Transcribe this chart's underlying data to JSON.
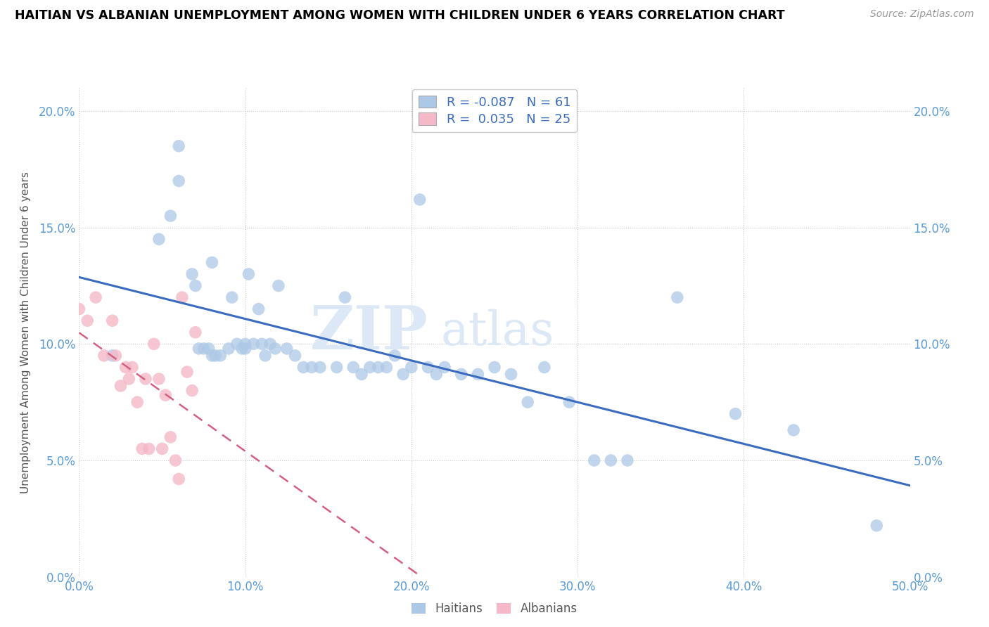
{
  "title": "HAITIAN VS ALBANIAN UNEMPLOYMENT AMONG WOMEN WITH CHILDREN UNDER 6 YEARS CORRELATION CHART",
  "source": "Source: ZipAtlas.com",
  "ylabel": "Unemployment Among Women with Children Under 6 years",
  "xlim": [
    0.0,
    0.5
  ],
  "ylim": [
    0.0,
    0.21
  ],
  "xticks": [
    0.0,
    0.1,
    0.2,
    0.3,
    0.4,
    0.5
  ],
  "yticks": [
    0.0,
    0.05,
    0.1,
    0.15,
    0.2
  ],
  "haitian_R": -0.087,
  "haitian_N": 61,
  "albanian_R": 0.035,
  "albanian_N": 25,
  "haitian_color": "#adc8e6",
  "albanian_color": "#f5b8c8",
  "haitian_line_color": "#3a6bbf",
  "albanian_line_color": "#d46080",
  "watermark_zip": "ZIP",
  "watermark_atlas": "atlas",
  "haitian_x": [
    0.02,
    0.048,
    0.055,
    0.06,
    0.06,
    0.068,
    0.07,
    0.072,
    0.075,
    0.078,
    0.08,
    0.08,
    0.082,
    0.085,
    0.09,
    0.092,
    0.095,
    0.098,
    0.1,
    0.1,
    0.102,
    0.105,
    0.108,
    0.11,
    0.112,
    0.115,
    0.118,
    0.12,
    0.125,
    0.13,
    0.135,
    0.14,
    0.145,
    0.155,
    0.16,
    0.165,
    0.17,
    0.175,
    0.18,
    0.185,
    0.19,
    0.195,
    0.2,
    0.205,
    0.21,
    0.215,
    0.22,
    0.23,
    0.24,
    0.25,
    0.26,
    0.27,
    0.28,
    0.295,
    0.31,
    0.32,
    0.33,
    0.36,
    0.395,
    0.43,
    0.48
  ],
  "haitian_y": [
    0.095,
    0.145,
    0.155,
    0.185,
    0.17,
    0.13,
    0.125,
    0.098,
    0.098,
    0.098,
    0.135,
    0.095,
    0.095,
    0.095,
    0.098,
    0.12,
    0.1,
    0.098,
    0.1,
    0.098,
    0.13,
    0.1,
    0.115,
    0.1,
    0.095,
    0.1,
    0.098,
    0.125,
    0.098,
    0.095,
    0.09,
    0.09,
    0.09,
    0.09,
    0.12,
    0.09,
    0.087,
    0.09,
    0.09,
    0.09,
    0.095,
    0.087,
    0.09,
    0.162,
    0.09,
    0.087,
    0.09,
    0.087,
    0.087,
    0.09,
    0.087,
    0.075,
    0.09,
    0.075,
    0.05,
    0.05,
    0.05,
    0.12,
    0.07,
    0.063,
    0.022
  ],
  "albanian_x": [
    0.0,
    0.005,
    0.01,
    0.015,
    0.02,
    0.022,
    0.025,
    0.028,
    0.03,
    0.032,
    0.035,
    0.038,
    0.04,
    0.042,
    0.045,
    0.048,
    0.05,
    0.052,
    0.055,
    0.058,
    0.06,
    0.062,
    0.065,
    0.068,
    0.07
  ],
  "albanian_y": [
    0.115,
    0.11,
    0.12,
    0.095,
    0.11,
    0.095,
    0.082,
    0.09,
    0.085,
    0.09,
    0.075,
    0.055,
    0.085,
    0.055,
    0.1,
    0.085,
    0.055,
    0.078,
    0.06,
    0.05,
    0.042,
    0.12,
    0.088,
    0.08,
    0.105
  ]
}
